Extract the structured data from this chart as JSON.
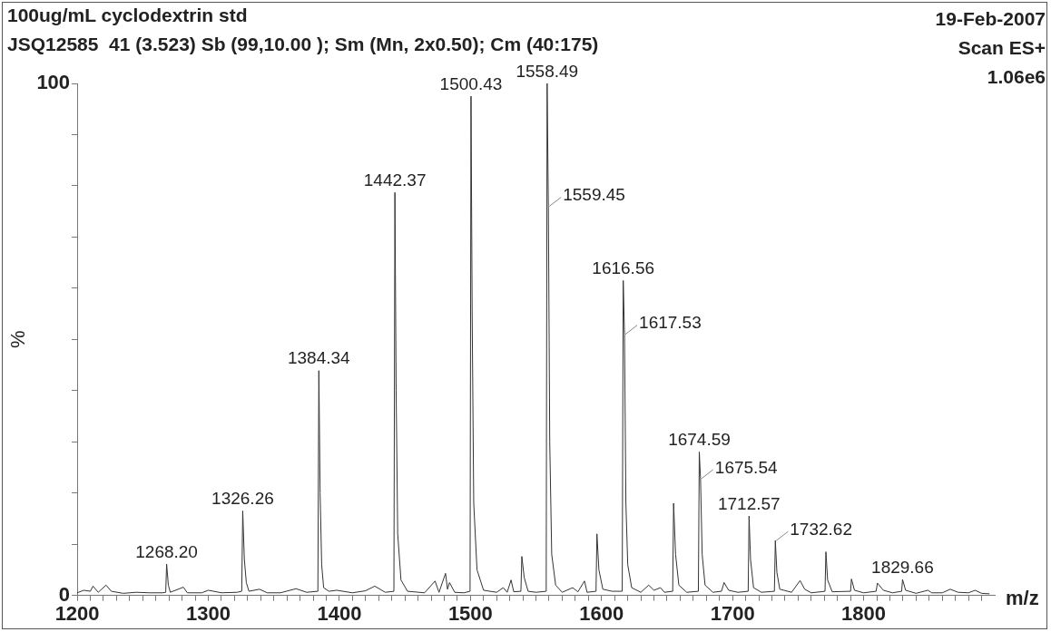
{
  "chart_data": {
    "type": "line",
    "title": "100ug/mL cyclodextrin std",
    "subtitle": "JSQ12585  41 (3.523) Sb (99,10.00 ); Sm (Mn, 2x0.50); Cm (40:175)",
    "xlabel": "m/z",
    "ylabel": "%",
    "annotations": [
      "19-Feb-2007",
      "Scan ES+",
      "1.06e6",
      {
        "text": "1558.49",
        "x": 1558.49,
        "y": 100
      },
      {
        "text": "1500.43",
        "x": 1500.43,
        "y": 97.5
      },
      {
        "text": "1559.45",
        "x": 1559.45,
        "y": 76
      },
      {
        "text": "1442.37",
        "x": 1442.37,
        "y": 78.7
      },
      {
        "text": "1384.34",
        "x": 1384.34,
        "y": 43.9
      },
      {
        "text": "1326.26",
        "x": 1326.26,
        "y": 16.5
      },
      {
        "text": "1268.20",
        "x": 1268.2,
        "y": 6.1
      },
      {
        "text": "1616.56",
        "x": 1616.56,
        "y": 61.5
      },
      {
        "text": "1617.53",
        "x": 1617.53,
        "y": 51
      },
      {
        "text": "1674.59",
        "x": 1674.59,
        "y": 28
      },
      {
        "text": "1675.54",
        "x": 1675.54,
        "y": 22.8
      },
      {
        "text": "1712.57",
        "x": 1712.57,
        "y": 15.5
      },
      {
        "text": "1732.62",
        "x": 1732.62,
        "y": 10.7
      },
      {
        "text": "1829.66",
        "x": 1829.66,
        "y": 3.1
      }
    ],
    "series": [
      {
        "color": "#333333",
        "x": [
          1200,
          1205,
          1210,
          1212,
          1216,
          1222,
          1226,
          1235,
          1245,
          1255,
          1265,
          1267.5,
          1268.2,
          1269.5,
          1271,
          1281,
          1284,
          1295,
          1300,
          1310,
          1322,
          1325.5,
          1326.26,
          1327.5,
          1329,
          1331,
          1339,
          1345,
          1355,
          1367,
          1375,
          1383.6,
          1384.34,
          1385.3,
          1386.5,
          1388,
          1392,
          1398,
          1410,
          1420,
          1427,
          1435,
          1441.6,
          1442.37,
          1443.3,
          1444.5,
          1447,
          1452,
          1465,
          1473,
          1476,
          1481,
          1482.5,
          1484,
          1488,
          1495,
          1499.7,
          1500.43,
          1501.3,
          1502.5,
          1505,
          1510,
          1520,
          1525,
          1528,
          1531,
          1533,
          1538.5,
          1539.2,
          1541,
          1544,
          1550,
          1557.8,
          1558.49,
          1559.45,
          1560.5,
          1562,
          1565,
          1570,
          1578,
          1582,
          1587,
          1589,
          1595.8,
          1596.5,
          1598,
          1601,
          1608,
          1615.8,
          1616.56,
          1617.53,
          1618.6,
          1620,
          1623,
          1630,
          1636,
          1640,
          1645,
          1648,
          1654.3,
          1655,
          1656.5,
          1659,
          1665,
          1673.9,
          1674.59,
          1675.54,
          1676.8,
          1679,
          1685,
          1691.5,
          1693.5,
          1697,
          1704,
          1711.9,
          1712.57,
          1713.7,
          1716,
          1722,
          1731.9,
          1732.62,
          1733.8,
          1736,
          1745,
          1751.5,
          1755,
          1760,
          1770.5,
          1771.2,
          1772.5,
          1776,
          1790,
          1790.7,
          1793,
          1800,
          1809.5,
          1810.5,
          1815,
          1822,
          1829,
          1829.66,
          1832,
          1840,
          1849,
          1852,
          1860,
          1866,
          1872,
          1880,
          1885,
          1890,
          1896
        ],
        "values": [
          0.5,
          1,
          0.8,
          1.8,
          0.6,
          2,
          0.8,
          0.4,
          0.6,
          0.5,
          0.5,
          0.6,
          6.1,
          2,
          0.6,
          1.6,
          0.5,
          0.5,
          1,
          0.5,
          0.6,
          0.8,
          16.5,
          7,
          2.5,
          0.8,
          1.2,
          0.5,
          0.5,
          1.3,
          0.6,
          0.8,
          43.9,
          20,
          6,
          1.5,
          0.8,
          1,
          0.5,
          0.9,
          1.8,
          0.6,
          0.8,
          78.7,
          40,
          12,
          3,
          0.8,
          0.5,
          2.8,
          0.6,
          4.3,
          1.2,
          2.5,
          0.6,
          0.5,
          0.8,
          97.5,
          55,
          18,
          5,
          1,
          0.6,
          1.5,
          0.6,
          3,
          0.7,
          0.8,
          7.6,
          3.5,
          0.8,
          0.6,
          0.8,
          100,
          76,
          30,
          8,
          2,
          0.6,
          1.5,
          0.7,
          2.8,
          0.6,
          0.8,
          12,
          5,
          1.2,
          0.8,
          0.8,
          61.5,
          51,
          18,
          6,
          1.5,
          0.6,
          2,
          1,
          1.5,
          0.6,
          0.8,
          18,
          8,
          2,
          0.6,
          0.8,
          28,
          22.8,
          8,
          2,
          0.6,
          0.8,
          2.5,
          1,
          0.6,
          0.8,
          15.5,
          7,
          1.5,
          0.6,
          0.8,
          10.7,
          4.5,
          1.2,
          0.6,
          2.9,
          1.2,
          0.5,
          0.8,
          8.5,
          3,
          0.7,
          0.8,
          3.2,
          1,
          0.5,
          0.8,
          2.4,
          1,
          0.5,
          0.8,
          3.1,
          1,
          0.4,
          1,
          0.5,
          0.5,
          1.2,
          0.6,
          0.5,
          1,
          0.4,
          0.3
        ]
      }
    ],
    "xlim": [
      1200,
      1900
    ],
    "ylim": [
      0,
      100
    ],
    "xticks": [
      1200,
      {
        "value": 1210,
        "label": null
      },
      {
        "value": 1220,
        "label": null
      },
      {
        "value": 1230,
        "label": null
      },
      {
        "value": 1240,
        "label": null
      },
      {
        "value": 1250,
        "label": null
      },
      {
        "value": 1260,
        "label": null
      },
      {
        "value": 1270,
        "label": null
      },
      {
        "value": 1280,
        "label": null
      },
      {
        "value": 1290,
        "label": null
      },
      1300,
      {
        "value": 1310,
        "label": null
      },
      {
        "value": 1320,
        "label": null
      },
      {
        "value": 1330,
        "label": null
      },
      {
        "value": 1340,
        "label": null
      },
      {
        "value": 1350,
        "label": null
      },
      {
        "value": 1360,
        "label": null
      },
      {
        "value": 1370,
        "label": null
      },
      {
        "value": 1380,
        "label": null
      },
      {
        "value": 1390,
        "label": null
      },
      1400,
      {
        "value": 1410,
        "label": null
      },
      {
        "value": 1420,
        "label": null
      },
      {
        "value": 1430,
        "label": null
      },
      {
        "value": 1440,
        "label": null
      },
      {
        "value": 1450,
        "label": null
      },
      {
        "value": 1460,
        "label": null
      },
      {
        "value": 1470,
        "label": null
      },
      {
        "value": 1480,
        "label": null
      },
      {
        "value": 1490,
        "label": null
      },
      1500,
      {
        "value": 1510,
        "label": null
      },
      {
        "value": 1520,
        "label": null
      },
      {
        "value": 1530,
        "label": null
      },
      {
        "value": 1540,
        "label": null
      },
      {
        "value": 1550,
        "label": null
      },
      {
        "value": 1560,
        "label": null
      },
      {
        "value": 1570,
        "label": null
      },
      {
        "value": 1580,
        "label": null
      },
      {
        "value": 1590,
        "label": null
      },
      1600,
      {
        "value": 1610,
        "label": null
      },
      {
        "value": 1620,
        "label": null
      },
      {
        "value": 1630,
        "label": null
      },
      {
        "value": 1640,
        "label": null
      },
      {
        "value": 1650,
        "label": null
      },
      {
        "value": 1660,
        "label": null
      },
      {
        "value": 1670,
        "label": null
      },
      {
        "value": 1680,
        "label": null
      },
      {
        "value": 1690,
        "label": null
      },
      1700,
      {
        "value": 1710,
        "label": null
      },
      {
        "value": 1720,
        "label": null
      },
      {
        "value": 1730,
        "label": null
      },
      {
        "value": 1740,
        "label": null
      },
      {
        "value": 1750,
        "label": null
      },
      {
        "value": 1760,
        "label": null
      },
      {
        "value": 1770,
        "label": null
      },
      {
        "value": 1780,
        "label": null
      },
      {
        "value": 1790,
        "label": null
      },
      1800,
      {
        "value": 1810,
        "label": null
      },
      {
        "value": 1820,
        "label": null
      },
      {
        "value": 1830,
        "label": null
      },
      {
        "value": 1840,
        "label": null
      },
      {
        "value": 1850,
        "label": null
      },
      {
        "value": 1860,
        "label": null
      },
      {
        "value": 1870,
        "label": null
      },
      {
        "value": 1880,
        "label": null
      },
      {
        "value": 1890,
        "label": null
      }
    ],
    "yticks": [
      0,
      {
        "value": 10,
        "label": null
      },
      {
        "value": 20,
        "label": null
      },
      {
        "value": 30,
        "label": null
      },
      {
        "value": 40,
        "label": null
      },
      {
        "value": 50,
        "label": null
      },
      {
        "value": 60,
        "label": null
      },
      {
        "value": 70,
        "label": null
      },
      {
        "value": 80,
        "label": null
      },
      {
        "value": 90,
        "label": null
      },
      100
    ],
    "grid": false,
    "legend": false,
    "marker": "none",
    "line_style": "solid"
  }
}
